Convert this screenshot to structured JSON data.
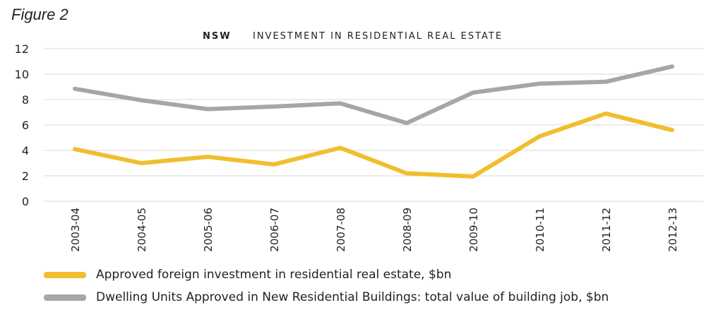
{
  "figure_label": "Figure 2",
  "chart_data": {
    "type": "line",
    "title_prefix": "NSW",
    "title": "INVESTMENT IN RESIDENTIAL REAL ESTATE",
    "categories": [
      "2003-04",
      "2004-05",
      "2005-06",
      "2006-07",
      "2007-08",
      "2008-09",
      "2009-10",
      "2010-11",
      "2011-12",
      "2012-13"
    ],
    "ylim": [
      0,
      12
    ],
    "yticks": [
      0,
      2,
      4,
      6,
      8,
      10,
      12
    ],
    "grid": true,
    "legend_position": "bottom",
    "series": [
      {
        "name": "Approved foreign investment in residential real estate, $bn",
        "color": "#f0be2e",
        "values": [
          4.1,
          3.0,
          3.5,
          2.9,
          4.2,
          2.2,
          1.95,
          5.1,
          6.9,
          5.6
        ]
      },
      {
        "name": "Dwelling Units Approved in New Residential Buildings: total value of building job, $bn",
        "color": "#a6a6a8",
        "values": [
          8.85,
          7.95,
          7.25,
          7.45,
          7.7,
          6.15,
          8.55,
          9.25,
          9.4,
          10.6
        ]
      }
    ]
  }
}
